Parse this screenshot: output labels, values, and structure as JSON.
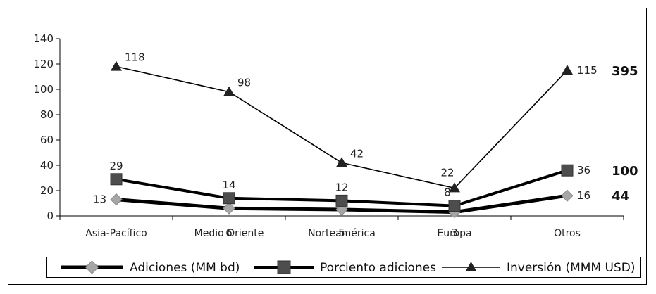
{
  "chart_data": {
    "type": "line",
    "categories": [
      "Asia-Pacífico",
      "Medio Oriente",
      "Norteamérica",
      "Europa",
      "Otros"
    ],
    "ylim": [
      0,
      140
    ],
    "yticks": [
      0,
      20,
      40,
      60,
      80,
      100,
      120,
      140
    ],
    "grid": false,
    "legend_position": "bottom",
    "series": [
      {
        "name": "Adiciones (MM bd)",
        "values": [
          13,
          6,
          5,
          3,
          16
        ],
        "labels": [
          "13",
          "6",
          "5",
          "3",
          "16"
        ],
        "total": "44",
        "color": "#000000",
        "marker_color": "#a6a6a6",
        "marker": "diamond"
      },
      {
        "name": "Porciento adiciones",
        "values": [
          29,
          14,
          12,
          8,
          36
        ],
        "labels": [
          "29",
          "14",
          "12",
          "8",
          "36"
        ],
        "total": "100",
        "color": "#000000",
        "marker_color": "#4d4d4d",
        "marker": "square"
      },
      {
        "name": "Inversión (MMM USD)",
        "values": [
          118,
          98,
          42,
          22,
          115
        ],
        "labels": [
          "118",
          "98",
          "42",
          "22",
          "115"
        ],
        "total": "395",
        "color": "#000000",
        "marker_color": "#222222",
        "marker": "triangle"
      }
    ]
  }
}
